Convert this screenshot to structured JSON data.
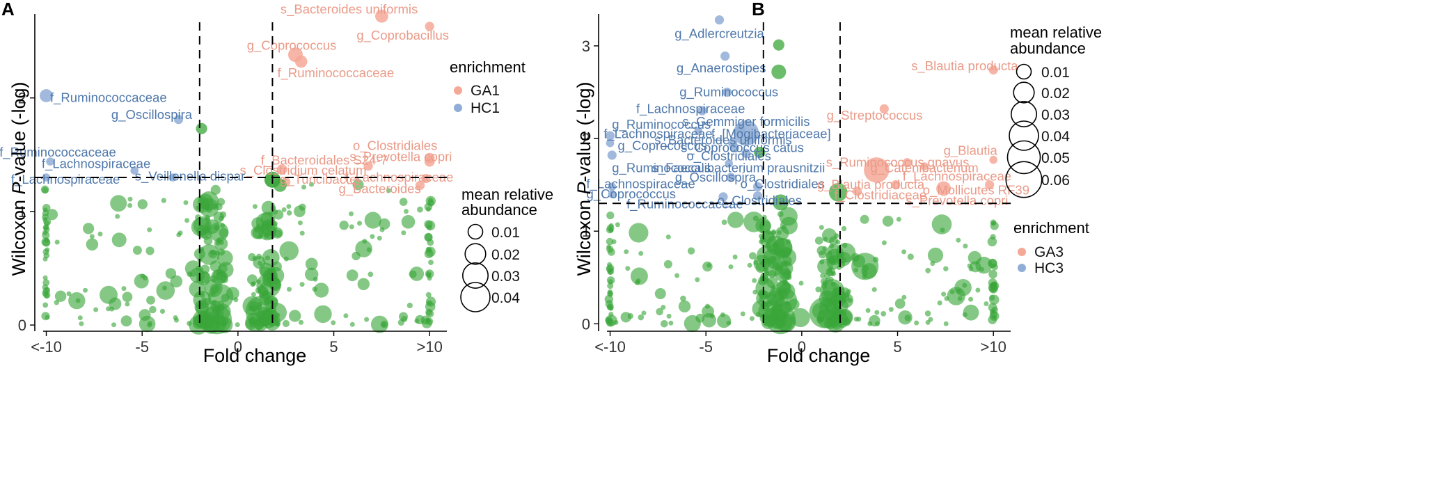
{
  "colors": {
    "up": "#f4a896",
    "down": "#8fadd6",
    "ns": "#3aa63a",
    "up_text": "#ea9a88",
    "down_text": "#4f78ab"
  },
  "chart_data": [
    {
      "panel": "A",
      "type": "scatter",
      "xlabel": "Fold change",
      "ylabel_pre": "Wilcoxon ",
      "ylabel_italic": "P",
      "ylabel_post": "-value (-log)",
      "xlim": [
        -10.6,
        10.9
      ],
      "ylim": [
        -0.03,
        2.85
      ],
      "xticks": [
        -10,
        -5,
        0,
        5,
        10
      ],
      "xtick_labels": [
        "<-10",
        "-5",
        "0",
        "5",
        ">10"
      ],
      "yticks": [
        0,
        1,
        2
      ],
      "ytick_labels": [
        "0",
        "1",
        "2"
      ],
      "vlines": [
        -2,
        1.8
      ],
      "hline": 1.3,
      "enrichment_legend": {
        "title": "enrichment",
        "entries": [
          "GA1",
          "HC1"
        ]
      },
      "size_legend": {
        "title": [
          "mean relative",
          "abundance"
        ],
        "entries": [
          [
            "0.01",
            0.01
          ],
          [
            "0.02",
            0.02
          ],
          [
            "0.03",
            0.03
          ],
          [
            "0.04",
            0.04
          ]
        ]
      },
      "labeled": [
        {
          "x": 7.5,
          "y": 2.72,
          "s": 0.008,
          "g": "up",
          "t": "s_Bacteroides uniformis",
          "lx": 5.8,
          "ly": 2.78,
          "a": "middle"
        },
        {
          "x": 10,
          "y": 2.63,
          "s": 0.004,
          "g": "up",
          "t": "g_Coprobacillus",
          "lx": 8.6,
          "ly": 2.55,
          "a": "middle"
        },
        {
          "x": 3.0,
          "y": 2.38,
          "s": 0.01,
          "g": "up",
          "t": "g_Coprococcus",
          "lx": 2.8,
          "ly": 2.46,
          "a": "middle"
        },
        {
          "x": 3.3,
          "y": 2.32,
          "s": 0.007,
          "g": "up",
          "t": "f_Ruminococcaceae",
          "lx": 5.1,
          "ly": 2.22,
          "a": "middle"
        },
        {
          "x": 10,
          "y": 1.47,
          "s": 0.005,
          "g": "up",
          "t": "o_Clostridiales",
          "lx": 8.2,
          "ly": 1.58,
          "a": "middle"
        },
        {
          "x": 10,
          "y": 1.44,
          "s": 0.005,
          "g": "up",
          "t": "s_Prevotella copri",
          "lx": 8.5,
          "ly": 1.48,
          "a": "middle"
        },
        {
          "x": 6.8,
          "y": 1.4,
          "s": 0.004,
          "g": "up",
          "t": "f_Bacteroidales S24-7",
          "lx": 4.5,
          "ly": 1.45,
          "a": "middle"
        },
        {
          "x": 2.3,
          "y": 1.37,
          "s": 0.005,
          "g": "up",
          "t": "s_Clostridium celatum",
          "lx": 3.4,
          "ly": 1.36,
          "a": "middle"
        },
        {
          "x": 9.8,
          "y": 1.29,
          "s": 0.004,
          "g": "up",
          "t": "f_Lachnospiraceae",
          "lx": 8.4,
          "ly": 1.3,
          "a": "middle"
        },
        {
          "x": 2.5,
          "y": 1.26,
          "s": 0.004,
          "g": "up",
          "t": "g_Turicibacter",
          "lx": 4.3,
          "ly": 1.28,
          "a": "middle"
        },
        {
          "x": 9.5,
          "y": 1.23,
          "s": 0.004,
          "g": "up",
          "t": "g_Bacteroides",
          "lx": 7.4,
          "ly": 1.2,
          "a": "middle"
        },
        {
          "x": -10,
          "y": 2.02,
          "s": 0.008,
          "g": "down",
          "t": "f_Ruminococcaceae",
          "lx": -9.8,
          "ly": 2.0,
          "a": "start"
        },
        {
          "x": -3.1,
          "y": 1.81,
          "s": 0.004,
          "g": "down",
          "t": "g_Oscillospira",
          "lx": -4.5,
          "ly": 1.85,
          "a": "middle"
        },
        {
          "x": -9.8,
          "y": 1.44,
          "s": 0.003,
          "g": "down",
          "t": "f_Ruminococcaceae",
          "lx": -9.4,
          "ly": 1.52,
          "a": "middle"
        },
        {
          "x": -5.4,
          "y": 1.36,
          "s": 0.003,
          "g": "down",
          "t": "f_Lachnospiraceae",
          "lx": -7.4,
          "ly": 1.42,
          "a": "middle"
        },
        {
          "x": -10,
          "y": 1.3,
          "s": 0.003,
          "g": "down",
          "t": "f_Lachnospiraceae",
          "lx": -9.0,
          "ly": 1.28,
          "a": "middle"
        },
        {
          "x": -3.4,
          "y": 1.3,
          "s": 0.003,
          "g": "down",
          "t": "s_Veillonella dispar",
          "lx": -2.5,
          "ly": 1.31,
          "a": "middle"
        }
      ]
    },
    {
      "panel": "B",
      "type": "scatter",
      "xlabel": "Fold change",
      "ylabel_pre": "Wilcoxon ",
      "ylabel_italic": "P",
      "ylabel_post": "-value (-log)",
      "xlim": [
        -10.6,
        10.9
      ],
      "ylim": [
        -0.05,
        3.48
      ],
      "xticks": [
        -10,
        -5,
        0,
        5,
        10
      ],
      "xtick_labels": [
        "<-10",
        "-5",
        "0",
        "5",
        ">10"
      ],
      "yticks": [
        0,
        1,
        2,
        3
      ],
      "ytick_labels": [
        "0",
        "1",
        "2",
        "3"
      ],
      "vlines": [
        -2,
        2
      ],
      "hline": 1.3,
      "enrichment_legend": {
        "title": "enrichment",
        "entries": [
          "GA3",
          "HC3"
        ]
      },
      "size_legend": {
        "title": [
          "mean relative",
          "abundance"
        ],
        "entries": [
          [
            "0.01",
            0.01
          ],
          [
            "0.02",
            0.02
          ],
          [
            "0.03",
            0.03
          ],
          [
            "0.04",
            0.04
          ],
          [
            "0.05",
            0.05
          ],
          [
            "0.06",
            0.06
          ]
        ]
      },
      "labeled": [
        {
          "x": -4.3,
          "y": 3.28,
          "s": 0.004,
          "g": "down",
          "t": "g_Adlercreutzia",
          "lx": -4.3,
          "ly": 3.13,
          "a": "middle"
        },
        {
          "x": -4.0,
          "y": 2.89,
          "s": 0.004,
          "g": "down",
          "t": "g_Anaerostipes",
          "lx": -4.2,
          "ly": 2.76,
          "a": "middle"
        },
        {
          "x": -3.9,
          "y": 2.5,
          "s": 0.004,
          "g": "down",
          "t": "g_Ruminococcus",
          "lx": -3.8,
          "ly": 2.5,
          "a": "middle"
        },
        {
          "x": -5.2,
          "y": 2.3,
          "s": 0.004,
          "g": "down",
          "t": "f_Lachnospiraceae",
          "lx": -5.8,
          "ly": 2.32,
          "a": "middle"
        },
        {
          "x": -3.2,
          "y": 2.1,
          "s": 0.004,
          "g": "down",
          "t": "s_Gemmiger formicilis",
          "lx": -2.9,
          "ly": 2.18,
          "a": "middle"
        },
        {
          "x": -2.9,
          "y": 2.06,
          "s": 0.03,
          "g": "down",
          "t": "f_[Mogibacteriaceae]",
          "lx": -1.6,
          "ly": 2.05,
          "a": "middle"
        },
        {
          "x": -5.4,
          "y": 2.08,
          "s": 0.003,
          "g": "down",
          "t": "f_Lachnospiraceae",
          "lx": -7.5,
          "ly": 2.05,
          "a": "middle"
        },
        {
          "x": -10,
          "y": 2.03,
          "s": 0.004,
          "g": "down",
          "t": "g_Ruminococcus",
          "lx": -9.9,
          "ly": 2.15,
          "a": "start"
        },
        {
          "x": -3.6,
          "y": 1.95,
          "s": 0.004,
          "g": "down",
          "t": "s_Bacteroides uniformis",
          "lx": -4.1,
          "ly": 1.98,
          "a": "middle"
        },
        {
          "x": -10,
          "y": 1.95,
          "s": 0.003,
          "g": "down",
          "t": "g_Coprococcus",
          "lx": -9.6,
          "ly": 1.92,
          "a": "start"
        },
        {
          "x": -3.5,
          "y": 1.9,
          "s": 0.004,
          "g": "down",
          "t": "s_Coprococcus catus",
          "lx": -3.1,
          "ly": 1.9,
          "a": "middle"
        },
        {
          "x": -2.9,
          "y": 1.84,
          "s": 0.004,
          "g": "down",
          "t": "o_Clostridiales",
          "lx": -3.8,
          "ly": 1.81,
          "a": "middle"
        },
        {
          "x": -9.9,
          "y": 1.82,
          "s": 0.004,
          "g": "down",
          "t": "g_Ruminococcus",
          "lx": -9.9,
          "ly": 1.68,
          "a": "start"
        },
        {
          "x": -3.8,
          "y": 1.73,
          "s": 0.003,
          "g": "down",
          "t": "s_Faecalibacterium prausnitzii",
          "lx": -3.3,
          "ly": 1.68,
          "a": "middle"
        },
        {
          "x": -3.7,
          "y": 1.58,
          "s": 0.004,
          "g": "down",
          "t": "g_Oscillospira",
          "lx": -4.5,
          "ly": 1.58,
          "a": "middle"
        },
        {
          "x": -9.9,
          "y": 1.48,
          "s": 0.003,
          "g": "down",
          "t": "f_Lachnospiraceae",
          "lx": -8.4,
          "ly": 1.51,
          "a": "middle"
        },
        {
          "x": -2.3,
          "y": 1.48,
          "s": 0.004,
          "g": "down",
          "t": "o_Clostridiales",
          "lx": -1.0,
          "ly": 1.51,
          "a": "middle"
        },
        {
          "x": -9.9,
          "y": 1.4,
          "s": 0.003,
          "g": "down",
          "t": "g_Coprococcus",
          "lx": -8.9,
          "ly": 1.4,
          "a": "middle"
        },
        {
          "x": -2.3,
          "y": 1.38,
          "s": 0.004,
          "g": "down",
          "t": "o_Clostridiales",
          "lx": -2.2,
          "ly": 1.33,
          "a": "middle"
        },
        {
          "x": -4.1,
          "y": 1.37,
          "s": 0.004,
          "g": "down",
          "t": "f_Ruminococcaceae",
          "lx": -6.1,
          "ly": 1.29,
          "a": "middle"
        },
        {
          "x": 10,
          "y": 2.74,
          "s": 0.004,
          "g": "up",
          "t": "s_Blautia producta",
          "lx": 8.5,
          "ly": 2.78,
          "a": "middle"
        },
        {
          "x": 4.3,
          "y": 2.32,
          "s": 0.004,
          "g": "up",
          "t": "g_Streptococcus",
          "lx": 3.8,
          "ly": 2.25,
          "a": "middle"
        },
        {
          "x": 10,
          "y": 1.77,
          "s": 0.003,
          "g": "up",
          "t": "g_Blautia",
          "lx": 8.8,
          "ly": 1.87,
          "a": "middle"
        },
        {
          "x": 5.5,
          "y": 1.74,
          "s": 0.004,
          "g": "up",
          "t": "s_Ruminococcus gnavus",
          "lx": 5.0,
          "ly": 1.74,
          "a": "middle"
        },
        {
          "x": 6.4,
          "y": 1.7,
          "s": 0.003,
          "g": "up",
          "t": "g_Catenibacterium",
          "lx": 6.4,
          "ly": 1.68,
          "a": "middle"
        },
        {
          "x": 3.9,
          "y": 1.66,
          "s": 0.03,
          "g": "up",
          "t": "f_Lachnospiraceae",
          "lx": 8.1,
          "ly": 1.59,
          "a": "middle"
        },
        {
          "x": 4.9,
          "y": 1.5,
          "s": 0.004,
          "g": "up",
          "t": "g_Blautia producta",
          "lx": 3.6,
          "ly": 1.5,
          "a": "middle"
        },
        {
          "x": 7.4,
          "y": 1.46,
          "s": 0.01,
          "g": "up",
          "t": "o_Mollicutes RF39",
          "lx": 9.1,
          "ly": 1.44,
          "a": "middle"
        },
        {
          "x": 2.9,
          "y": 1.43,
          "s": 0.004,
          "g": "up",
          "t": "f_Clostridiaceae",
          "lx": 4.1,
          "ly": 1.39,
          "a": "middle"
        },
        {
          "x": 9.8,
          "y": 1.5,
          "s": 0.004,
          "g": "up",
          "t": "s_Prevotella copri",
          "lx": 8.1,
          "ly": 1.33,
          "a": "middle"
        }
      ]
    }
  ]
}
